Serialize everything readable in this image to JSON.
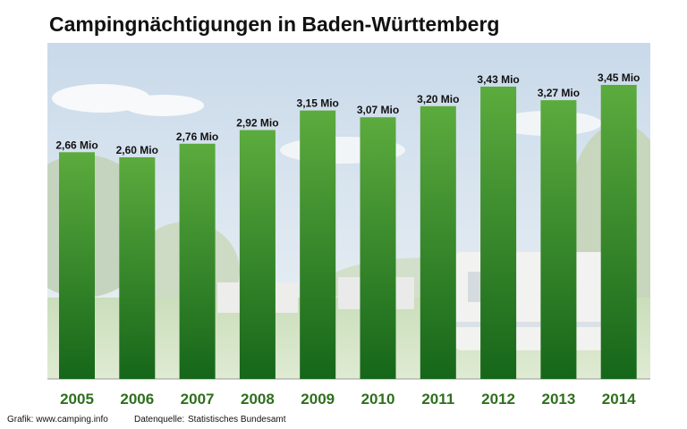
{
  "chart_data": {
    "type": "bar",
    "title": "Campingnächtigungen in Baden-Württemberg",
    "categories": [
      "2005",
      "2006",
      "2007",
      "2008",
      "2009",
      "2010",
      "2011",
      "2012",
      "2013",
      "2014"
    ],
    "values": [
      2.66,
      2.6,
      2.76,
      2.92,
      3.15,
      3.07,
      3.2,
      3.43,
      3.27,
      3.45
    ],
    "value_labels": [
      "2,66 Mio",
      "2,60 Mio",
      "2,76 Mio",
      "2,92 Mio",
      "3,15 Mio",
      "3,07 Mio",
      "3,20 Mio",
      "3,43 Mio",
      "3,27 Mio",
      "3,45 Mio"
    ],
    "unit": "Mio",
    "ylim": [
      0,
      3.67
    ],
    "grid": false,
    "legend": "none",
    "bar_color_top": "#5cab3e",
    "bar_color_bottom": "#16661a",
    "xtick_color": "#2f6f1f"
  },
  "footer": {
    "credit": "Grafik: www.camping.info",
    "source_label": "Datenquelle:",
    "source_value": "Statistisches Bundesamt"
  }
}
